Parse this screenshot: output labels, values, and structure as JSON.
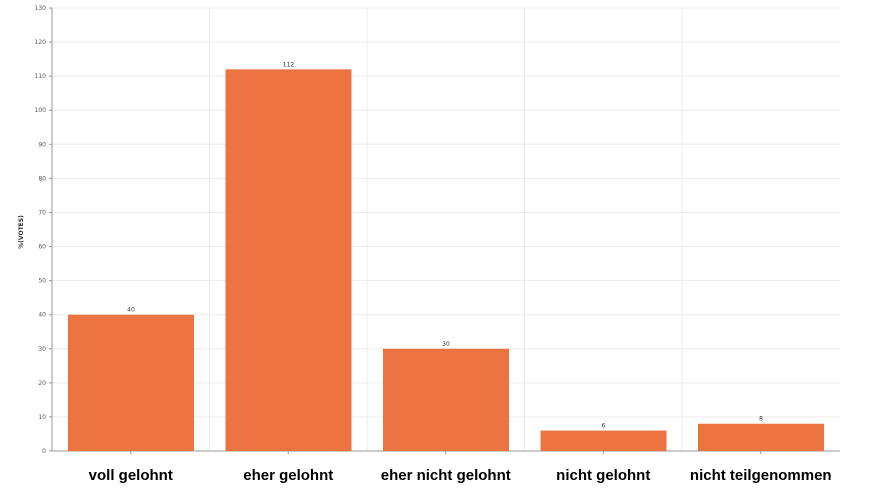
{
  "chart_data": {
    "type": "bar",
    "categories": [
      "voll gelohnt",
      "eher gelohnt",
      "eher nicht gelohnt",
      "nicht gelohnt",
      "nicht teilgenommen"
    ],
    "values": [
      40,
      112,
      30,
      6,
      8
    ],
    "ylabel": "%(VOTES)",
    "ylim": [
      0,
      130
    ],
    "yticks": [
      0,
      10,
      20,
      30,
      40,
      50,
      60,
      70,
      80,
      90,
      100,
      110,
      120,
      130
    ],
    "grid": true,
    "bar_color": "#eb7441"
  }
}
